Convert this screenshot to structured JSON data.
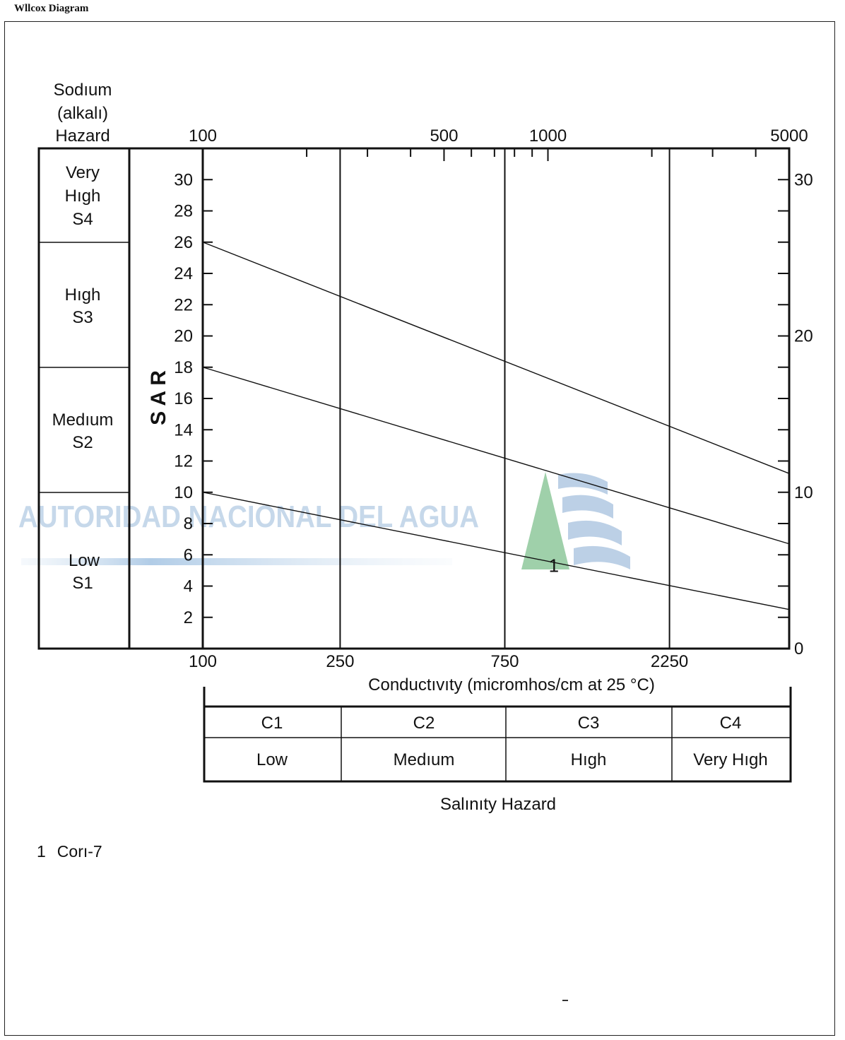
{
  "doc_title": "Wllcox Diagram",
  "watermark": {
    "text": "AUTORIDAD NACIONAL DEL AGUA"
  },
  "sodium_panel": {
    "title_lines": [
      "Sodıum",
      "(alkalı)",
      "Hazard"
    ],
    "classes": [
      {
        "lines": [
          "Very",
          "Hıgh",
          "S4"
        ]
      },
      {
        "lines": [
          "Hıgh",
          "S3"
        ]
      },
      {
        "lines": [
          "Medıum",
          "S2"
        ]
      },
      {
        "lines": [
          "Low",
          "S1"
        ]
      }
    ]
  },
  "salinity_table": {
    "codes": [
      "C1",
      "C2",
      "C3",
      "C4"
    ],
    "levels": [
      "Low",
      "Medıum",
      "Hıgh",
      "Very Hıgh"
    ],
    "caption": "Salınıty Hazard"
  },
  "legend": {
    "number": "1",
    "sample": "Corı-7"
  },
  "chart_data": {
    "type": "scatter",
    "title": "",
    "xlabel": "Conductıvıty (micromhos/cm at 25 °C)",
    "ylabel": "S A R",
    "x_scale": "log",
    "xlim": [
      100,
      5000
    ],
    "top_x_ticks": [
      "100",
      "500",
      "1000",
      "5000"
    ],
    "class_boundaries_x": [
      250,
      750,
      2250
    ],
    "bottom_x_ticks": [
      "100",
      "250",
      "750",
      "2250"
    ],
    "left_y_ticks": [
      "30",
      "28",
      "26",
      "24",
      "22",
      "20",
      "18",
      "16",
      "14",
      "12",
      "10",
      "8",
      "6",
      "4",
      "2"
    ],
    "right_y_ticks": [
      "30",
      "20",
      "10",
      "0"
    ],
    "ylim": [
      0,
      32
    ],
    "boundary_lines": [
      {
        "x": [
          100,
          5000
        ],
        "y": [
          26,
          11.2
        ]
      },
      {
        "x": [
          100,
          5000
        ],
        "y": [
          18,
          6.7
        ]
      },
      {
        "x": [
          100,
          5000
        ],
        "y": [
          10,
          2.5
        ]
      }
    ],
    "points": [
      {
        "label": "1",
        "x": 1040,
        "y": 5.3
      }
    ]
  }
}
